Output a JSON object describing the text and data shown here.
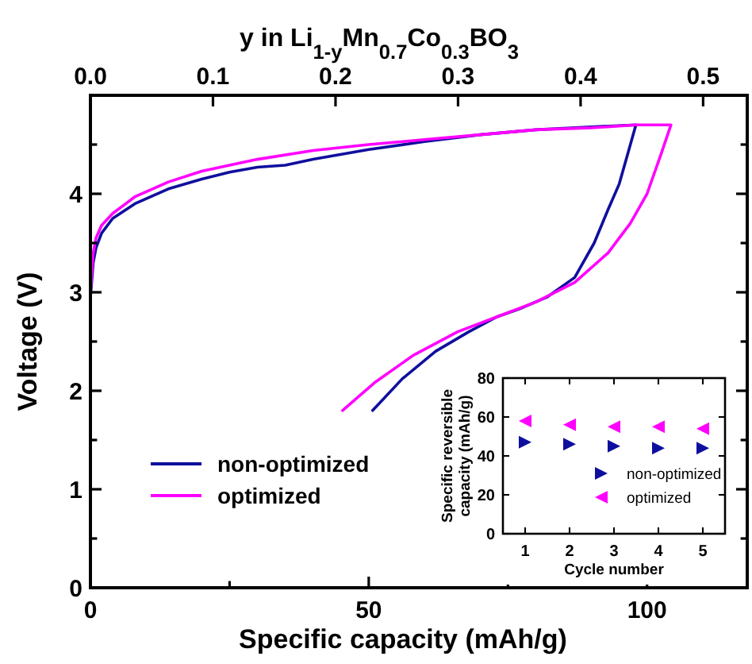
{
  "chart_data": [
    {
      "type": "line",
      "xlabel": "Specific capacity (mAh/g)",
      "ylabel": "Voltage (V)",
      "x2label": "y in Li$_{1-y}$Mn$_{0.7}$Co$_{0.3}$BO$_{3}$",
      "xlim": [
        0,
        118
      ],
      "xticks": [
        0,
        {
          "value": 25,
          "label": null
        },
        50,
        {
          "value": 75,
          "label": null
        },
        100
      ],
      "x2lim": [
        0,
        0.536
      ],
      "x2ticks": [
        {
          "value": 0,
          "label": "0.0"
        },
        0.1,
        0.2,
        0.3,
        0.4,
        0.5
      ],
      "ylim": [
        0,
        5
      ],
      "yticks": [
        0,
        {
          "value": 0.5,
          "label": null
        },
        1,
        {
          "value": 1.5,
          "label": null
        },
        2,
        {
          "value": 2.5,
          "label": null
        },
        3,
        {
          "value": 3.5,
          "label": null
        },
        4,
        {
          "value": 4.5,
          "label": null
        }
      ],
      "grid": false,
      "legend": "bottom left",
      "line_style": "solid",
      "marker": "none",
      "series": [
        {
          "name": "non-optimized",
          "color": "#0f0f9e",
          "x": [
            0,
            0.5,
            1,
            2,
            4,
            8,
            14,
            20,
            25,
            30,
            35,
            40,
            50,
            60,
            70,
            80,
            90,
            98,
            96.5,
            95,
            93,
            90.5,
            87,
            82,
            77,
            73,
            68,
            62,
            56,
            50.7
          ],
          "values": [
            2.95,
            3.3,
            3.45,
            3.6,
            3.75,
            3.9,
            4.05,
            4.15,
            4.22,
            4.27,
            4.29,
            4.35,
            4.45,
            4.53,
            4.6,
            4.65,
            4.68,
            4.7,
            4.4,
            4.1,
            3.84,
            3.5,
            3.15,
            2.95,
            2.83,
            2.75,
            2.6,
            2.4,
            2.12,
            1.8
          ]
        },
        {
          "name": "optimized",
          "color": "#ff00ff",
          "x": [
            0,
            0.5,
            1,
            2,
            4,
            8,
            14,
            20,
            30,
            40,
            50,
            60,
            70,
            80,
            90,
            98,
            104.3,
            102.5,
            100,
            97,
            93,
            87,
            80,
            73,
            66,
            58,
            51,
            45.3
          ],
          "values": [
            3.0,
            3.4,
            3.55,
            3.68,
            3.8,
            3.97,
            4.12,
            4.23,
            4.35,
            4.44,
            4.5,
            4.55,
            4.6,
            4.65,
            4.67,
            4.7,
            4.7,
            4.4,
            4.0,
            3.7,
            3.4,
            3.1,
            2.9,
            2.75,
            2.6,
            2.36,
            2.08,
            1.8
          ]
        }
      ]
    },
    {
      "type": "scatter",
      "xlabel": "Cycle number",
      "ylabel": "Specific reversible capacity (mAh/g)",
      "xlim": [
        0.5,
        5.5
      ],
      "xticks": [
        1,
        2,
        3,
        4,
        5
      ],
      "ylim": [
        0,
        80
      ],
      "yticks": [
        0,
        20,
        40,
        60,
        80
      ],
      "grid": false,
      "legend": "bottom right",
      "marker": "triangle",
      "series": [
        {
          "name": "non-optimized",
          "color": "#0f0f9e",
          "x": [
            1,
            2,
            3,
            4,
            5
          ],
          "values": [
            47,
            46,
            45,
            44,
            44
          ]
        },
        {
          "name": "optimized",
          "color": "#ff00ff",
          "x": [
            1,
            2,
            3,
            4,
            5
          ],
          "values": [
            58,
            56,
            55,
            55,
            54
          ]
        }
      ]
    }
  ]
}
